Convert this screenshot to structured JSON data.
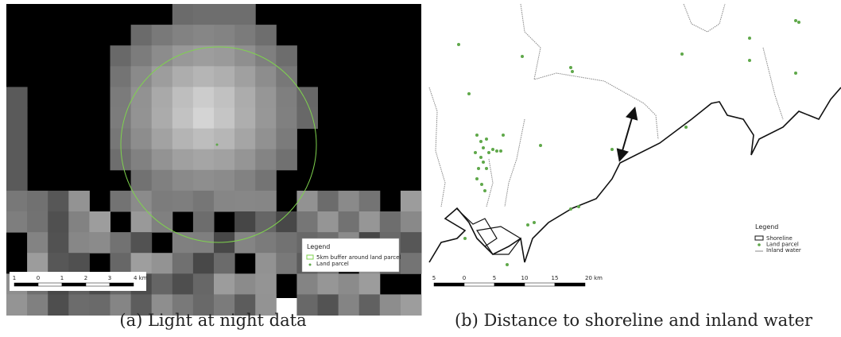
{
  "panels": [
    {
      "caption": "(a) Light at night data",
      "legend": {
        "title": "Legend",
        "items": [
          "5km buffer around land parcel",
          "Land parcel"
        ]
      },
      "scale_bar": [
        "1",
        "0",
        "1",
        "2",
        "3",
        "4 km"
      ]
    },
    {
      "caption": "(b) Distance to shoreline and inland water",
      "legend": {
        "title": "Legend",
        "items": [
          "Shoreline",
          "Land parcel",
          "Inland water"
        ]
      },
      "scale_bar": [
        "5",
        "0",
        "5",
        "10",
        "15",
        "20 km"
      ]
    }
  ]
}
